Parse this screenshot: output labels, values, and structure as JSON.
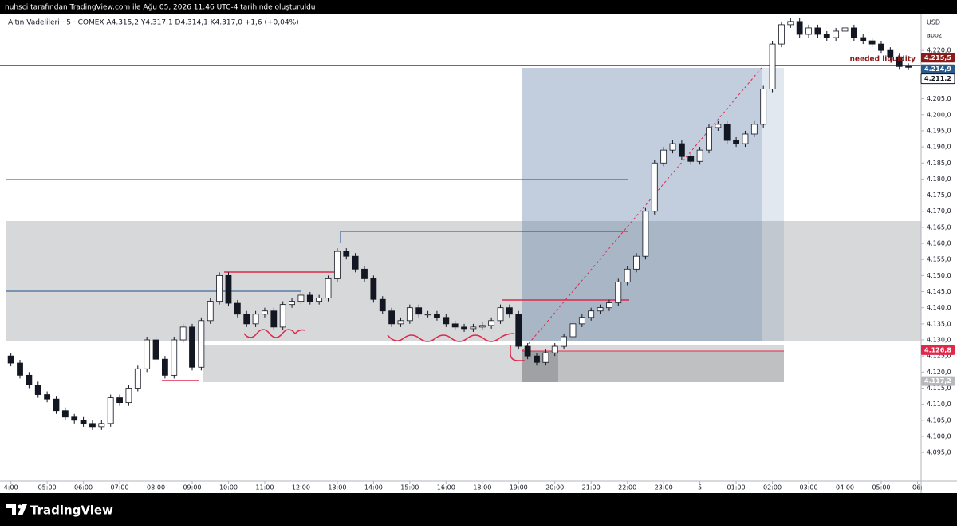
{
  "header": {
    "caption": "nuhsci tarafından TradingView.com ile Ağu 05, 2026 11:46 UTC-4 tarihinde oluşturuldu"
  },
  "chart_data": {
    "type": "candlestick",
    "symbol_info": "Altın Vadelileri · 5 · COMEX  A4.315,2  Y4.317,1  D4.314,1  K4.317,0  +1,6 (+0,04%)",
    "currency": "USD",
    "axis_note": "apoz",
    "annotation": "needed liquidity",
    "up_color": "#ffffff",
    "down_color": "#131722",
    "x": [
      0,
      0.25,
      0.5,
      0.75,
      1,
      1.25,
      1.5,
      1.75,
      2,
      2.25,
      2.5,
      2.75,
      3,
      3.25,
      3.5,
      3.75,
      4,
      4.25,
      4.5,
      4.75,
      5,
      5.25,
      5.5,
      5.75,
      6,
      6.25,
      6.5,
      6.75,
      7,
      7.25,
      7.5,
      7.75,
      8,
      8.25,
      8.5,
      8.75,
      9,
      9.25,
      9.5,
      9.75,
      10,
      10.25,
      10.5,
      10.75,
      11,
      11.25,
      11.5,
      11.75,
      12,
      12.25,
      12.5,
      12.75,
      13,
      13.25,
      13.5,
      13.75,
      14,
      14.25,
      14.5,
      14.75,
      15,
      15.25,
      15.5,
      15.75,
      16,
      16.25,
      16.5,
      16.75,
      17,
      17.25,
      17.5,
      17.75,
      18,
      18.25,
      18.5,
      18.75,
      19,
      19.25,
      19.5,
      19.75,
      20,
      20.25,
      20.5,
      20.75,
      21,
      21.25,
      21.5,
      21.75,
      22,
      22.25,
      22.5,
      22.75,
      23,
      23.25,
      23.5,
      23.75,
      24,
      24.25,
      24.5,
      24.75
    ],
    "open": [
      4125,
      4122.8,
      4119,
      4116,
      4113,
      4111.6,
      4108,
      4106,
      4105,
      4104,
      4103,
      4104,
      4112,
      4110.5,
      4115,
      4121,
      4130,
      4124,
      4119,
      4130,
      4134,
      4121.5,
      4136,
      4142,
      4150,
      4141.4,
      4138,
      4135,
      4138,
      4139,
      4134,
      4141,
      4142,
      4143.9,
      4142,
      4143,
      4149,
      4157.5,
      4156,
      4152,
      4149,
      4142.6,
      4139,
      4135,
      4136,
      4140,
      4138,
      4138,
      4137,
      4135,
      4134,
      4133.5,
      4134,
      4134.5,
      4136,
      4140,
      4138,
      4128,
      4125,
      4123,
      4126,
      4128,
      4131,
      4135,
      4137,
      4139,
      4140,
      4141.5,
      4148,
      4152,
      4156,
      4170,
      4185,
      4189,
      4191,
      4187,
      4185.5,
      4189,
      4196,
      4197,
      4192,
      4191,
      4194,
      4197,
      4208,
      4222,
      4228,
      4229,
      4225,
      4227,
      4225,
      4224,
      4226,
      4227,
      4224,
      4223,
      4222,
      4220,
      4218,
      4215
    ],
    "high": [
      4126,
      4123.8,
      4120,
      4117,
      4114,
      4112.6,
      4109,
      4107,
      4106,
      4105,
      4105,
      4113,
      4113,
      4116,
      4122,
      4131,
      4131,
      4125,
      4131,
      4135,
      4135,
      4137,
      4143,
      4151,
      4151,
      4142.4,
      4139,
      4139,
      4140,
      4140,
      4142,
      4143,
      4144.9,
      4144.9,
      4144,
      4150,
      4158.5,
      4158.5,
      4157,
      4153,
      4150,
      4143.6,
      4140,
      4137,
      4141,
      4141,
      4139,
      4139,
      4138,
      4136,
      4135,
      4135,
      4135.5,
      4137,
      4141,
      4141,
      4139,
      4129,
      4126,
      4127,
      4129,
      4132,
      4136,
      4138,
      4140,
      4141,
      4142.5,
      4149,
      4153,
      4157,
      4171,
      4186,
      4190,
      4192,
      4192,
      4188,
      4190,
      4197,
      4198,
      4198,
      4193,
      4195,
      4198,
      4209,
      4223,
      4229,
      4230,
      4230,
      4228,
      4228,
      4226,
      4227,
      4228,
      4228,
      4225,
      4224,
      4223,
      4221,
      4219,
      4216
    ],
    "low": [
      4121.8,
      4118,
      4115,
      4112,
      4110.6,
      4107,
      4105,
      4104,
      4103,
      4102,
      4102,
      4103,
      4109.5,
      4109.5,
      4114,
      4120,
      4123,
      4118,
      4118,
      4129,
      4120.5,
      4120.5,
      4135,
      4141,
      4140.4,
      4137,
      4134,
      4134,
      4137,
      4133,
      4133,
      4140,
      4141,
      4141,
      4141,
      4142,
      4148,
      4155,
      4151,
      4148,
      4141.6,
      4138,
      4134,
      4134,
      4135,
      4137,
      4137,
      4136,
      4134,
      4133,
      4132.5,
      4132.5,
      4133,
      4133.5,
      4135,
      4137,
      4127,
      4124,
      4122,
      4122,
      4125,
      4127,
      4130,
      4134,
      4136,
      4138,
      4139,
      4140.5,
      4147,
      4151,
      4155,
      4169,
      4184,
      4188,
      4186,
      4184.5,
      4184.5,
      4188,
      4195,
      4191,
      4190,
      4190,
      4193,
      4196,
      4207,
      4221,
      4227,
      4224,
      4224,
      4224,
      4223,
      4223,
      4225,
      4223,
      4222,
      4221,
      4219,
      4217,
      4214,
      4213.9
    ],
    "close": [
      4122.8,
      4119,
      4116,
      4113,
      4111.6,
      4108,
      4106,
      4105,
      4104,
      4103,
      4104,
      4112,
      4110.5,
      4115,
      4121,
      4130,
      4124,
      4119,
      4130,
      4134,
      4121.5,
      4136,
      4142,
      4150,
      4141.4,
      4138,
      4135,
      4138,
      4139,
      4134,
      4141,
      4142,
      4143.9,
      4142,
      4143,
      4149,
      4157.5,
      4156,
      4152,
      4149,
      4142.6,
      4139,
      4135,
      4136,
      4140,
      4138,
      4138,
      4137,
      4135,
      4134,
      4133.5,
      4134,
      4134.5,
      4136,
      4140,
      4138,
      4128,
      4125,
      4123,
      4126,
      4128,
      4131,
      4135,
      4137,
      4139,
      4140,
      4141.5,
      4148,
      4152,
      4156,
      4170,
      4185,
      4189,
      4191,
      4187,
      4185.5,
      4189,
      4196,
      4197,
      4192,
      4191,
      4194,
      4197,
      4208,
      4222,
      4228,
      4229,
      4225,
      4227,
      4225,
      4224,
      4226,
      4227,
      4224,
      4223,
      4222,
      4220,
      4218,
      4215,
      4214.9
    ],
    "xlim": [
      -0.3,
      25.1
    ],
    "xticks": [
      {
        "value": 0,
        "label": "4:00"
      },
      {
        "value": 1,
        "label": "05:00"
      },
      {
        "value": 2,
        "label": "06:00"
      },
      {
        "value": 3,
        "label": "07:00"
      },
      {
        "value": 4,
        "label": "08:00"
      },
      {
        "value": 5,
        "label": "09:00"
      },
      {
        "value": 6,
        "label": "10:00"
      },
      {
        "value": 7,
        "label": "11:00"
      },
      {
        "value": 8,
        "label": "12:00"
      },
      {
        "value": 9,
        "label": "13:00"
      },
      {
        "value": 10,
        "label": "14:00"
      },
      {
        "value": 11,
        "label": "15:00"
      },
      {
        "value": 12,
        "label": "16:00"
      },
      {
        "value": 13,
        "label": "18:00"
      },
      {
        "value": 14,
        "label": "19:00"
      },
      {
        "value": 15,
        "label": "20:00"
      },
      {
        "value": 16,
        "label": "21:00"
      },
      {
        "value": 17,
        "label": "22:00"
      },
      {
        "value": 18,
        "label": "23:00"
      },
      {
        "value": 19,
        "label": "5"
      },
      {
        "value": 20,
        "label": "01:00"
      },
      {
        "value": 21,
        "label": "02:00"
      },
      {
        "value": 22,
        "label": "03:00"
      },
      {
        "value": 23,
        "label": "04:00"
      },
      {
        "value": 24,
        "label": "05:00"
      },
      {
        "value": 25,
        "label": "06:"
      }
    ],
    "ylim": [
      4086.1,
      4231.2
    ],
    "yticks": [
      {
        "value": 4095,
        "label": "4.095,0"
      },
      {
        "value": 4100,
        "label": "4.100,0"
      },
      {
        "value": 4105,
        "label": "4.105,0"
      },
      {
        "value": 4110,
        "label": "4.110,0"
      },
      {
        "value": 4115,
        "label": "4.115,0"
      },
      {
        "value": 4120,
        "label": "4.120,0"
      },
      {
        "value": 4125,
        "label": "4.125,0"
      },
      {
        "value": 4130,
        "label": "4.130,0"
      },
      {
        "value": 4135,
        "label": "4.135,0"
      },
      {
        "value": 4140,
        "label": "4.140,0"
      },
      {
        "value": 4145,
        "label": "4.145,0"
      },
      {
        "value": 4150,
        "label": "4.150,0"
      },
      {
        "value": 4155,
        "label": "4.155,0"
      },
      {
        "value": 4160,
        "label": "4.160,0"
      },
      {
        "value": 4165,
        "label": "4.165,0"
      },
      {
        "value": 4170,
        "label": "4.170,0"
      },
      {
        "value": 4175,
        "label": "4.175,0"
      },
      {
        "value": 4180,
        "label": "4.180,0"
      },
      {
        "value": 4185,
        "label": "4.185,0"
      },
      {
        "value": 4190,
        "label": "4.190,0"
      },
      {
        "value": 4195,
        "label": "4.195,0"
      },
      {
        "value": 4200,
        "label": "4.200,0"
      },
      {
        "value": 4205,
        "label": "4.205,0"
      },
      {
        "value": 4220,
        "label": "4.220,0"
      }
    ],
    "price_labels": [
      {
        "value": 4215.5,
        "label": "4.215,5",
        "color": "#8b1a1a"
      },
      {
        "value": 4214.9,
        "label": "4.214,9",
        "color": "#2a5a8a"
      },
      {
        "value": 4211.2,
        "label": "4.211,2",
        "color": "#ffffff"
      },
      {
        "value": 4126.8,
        "label": "4.126,8",
        "color": "#e0284a"
      },
      {
        "value": 4117.2,
        "label": "4.117,2",
        "color": "#b8b9bc"
      }
    ]
  },
  "footer": {
    "brand": "TradingView"
  }
}
